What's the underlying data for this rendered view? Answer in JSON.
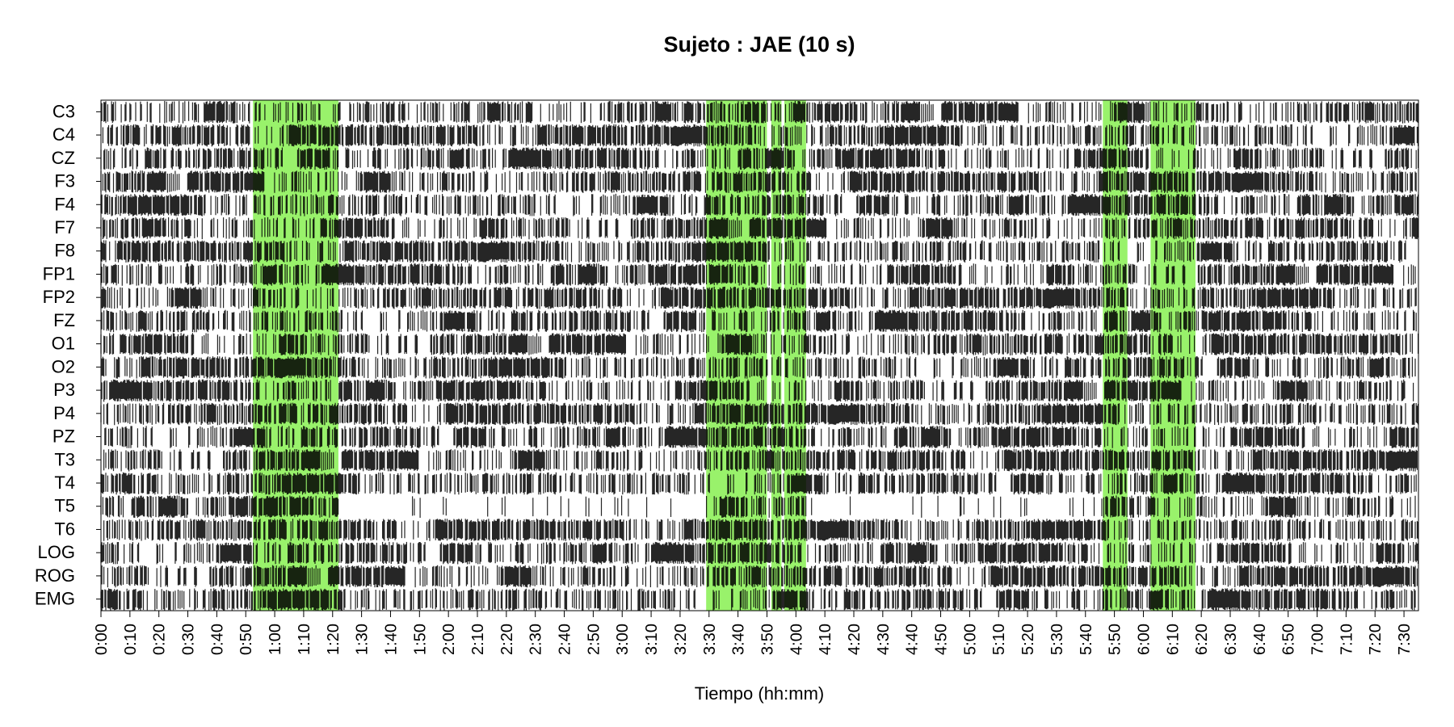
{
  "chart_data": {
    "type": "heatmap",
    "title": "Sujeto : JAE  (10 s)",
    "xlabel": "Tiempo (hh:mm)",
    "ylabel": "",
    "channels": [
      "C3",
      "C4",
      "CZ",
      "F3",
      "F4",
      "F7",
      "F8",
      "FP1",
      "FP2",
      "FZ",
      "O1",
      "O2",
      "P3",
      "P4",
      "PZ",
      "T3",
      "T4",
      "T5",
      "T6",
      "LOG",
      "ROG",
      "EMG"
    ],
    "x_ticks": [
      "0:00",
      "0:10",
      "0:20",
      "0:30",
      "0:40",
      "0:50",
      "1:00",
      "1:10",
      "1:20",
      "1:30",
      "1:40",
      "1:50",
      "2:00",
      "2:10",
      "2:20",
      "2:30",
      "2:40",
      "2:50",
      "3:00",
      "3:10",
      "3:20",
      "3:30",
      "3:40",
      "3:50",
      "4:00",
      "4:10",
      "4:20",
      "4:30",
      "4:40",
      "4:50",
      "5:00",
      "5:10",
      "5:20",
      "5:30",
      "5:40",
      "5:50",
      "6:00",
      "6:10",
      "6:20",
      "6:30",
      "6:40",
      "6:50",
      "7:00",
      "7:10",
      "7:20",
      "7:30"
    ],
    "x_range_minutes": [
      0,
      455
    ],
    "epoch_seconds": 10,
    "highlight_color": "#99f26b",
    "mark_color": "#000000",
    "highlight_intervals_minutes": [
      [
        52.5,
        82
      ],
      [
        209,
        230
      ],
      [
        231.5,
        235
      ],
      [
        236,
        243.5
      ],
      [
        346,
        354.5
      ],
      [
        362.5,
        378
      ]
    ],
    "grid": false,
    "legend": "none"
  }
}
